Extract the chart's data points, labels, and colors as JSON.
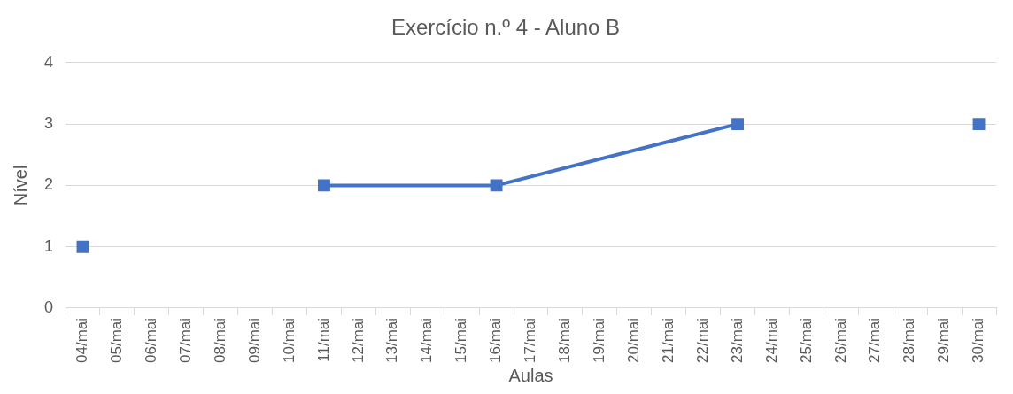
{
  "chart_data": {
    "type": "line",
    "title": "Exercício n.º 4 - Aluno B",
    "xlabel": "Aulas",
    "ylabel": "Nível",
    "categories": [
      "04/mai",
      "05/mai",
      "06/mai",
      "07/mai",
      "08/mai",
      "09/mai",
      "10/mai",
      "11/mai",
      "12/mai",
      "13/mai",
      "14/mai",
      "15/mai",
      "16/mai",
      "17/mai",
      "18/mai",
      "19/mai",
      "20/mai",
      "21/mai",
      "22/mai",
      "23/mai",
      "24/mai",
      "25/mai",
      "26/mai",
      "27/mai",
      "28/mai",
      "29/mai",
      "30/mai"
    ],
    "series": [
      {
        "color": "#4472c4",
        "values": [
          null,
          null,
          null,
          null,
          null,
          null,
          null,
          2,
          null,
          null,
          null,
          null,
          2,
          null,
          null,
          null,
          null,
          null,
          null,
          3,
          null,
          null,
          null,
          null,
          null,
          null,
          null
        ]
      },
      {
        "type": "scatter",
        "color": "#4472c4",
        "values": [
          1,
          null,
          null,
          null,
          null,
          null,
          null,
          null,
          null,
          null,
          null,
          null,
          null,
          null,
          null,
          null,
          null,
          null,
          null,
          null,
          null,
          null,
          null,
          null,
          null,
          null,
          3
        ]
      }
    ],
    "ylim": [
      0,
      4
    ],
    "yticks": [
      0,
      1,
      2,
      3,
      4
    ],
    "grid": "y",
    "legend": false,
    "marker": "square",
    "line_style": "solid"
  }
}
